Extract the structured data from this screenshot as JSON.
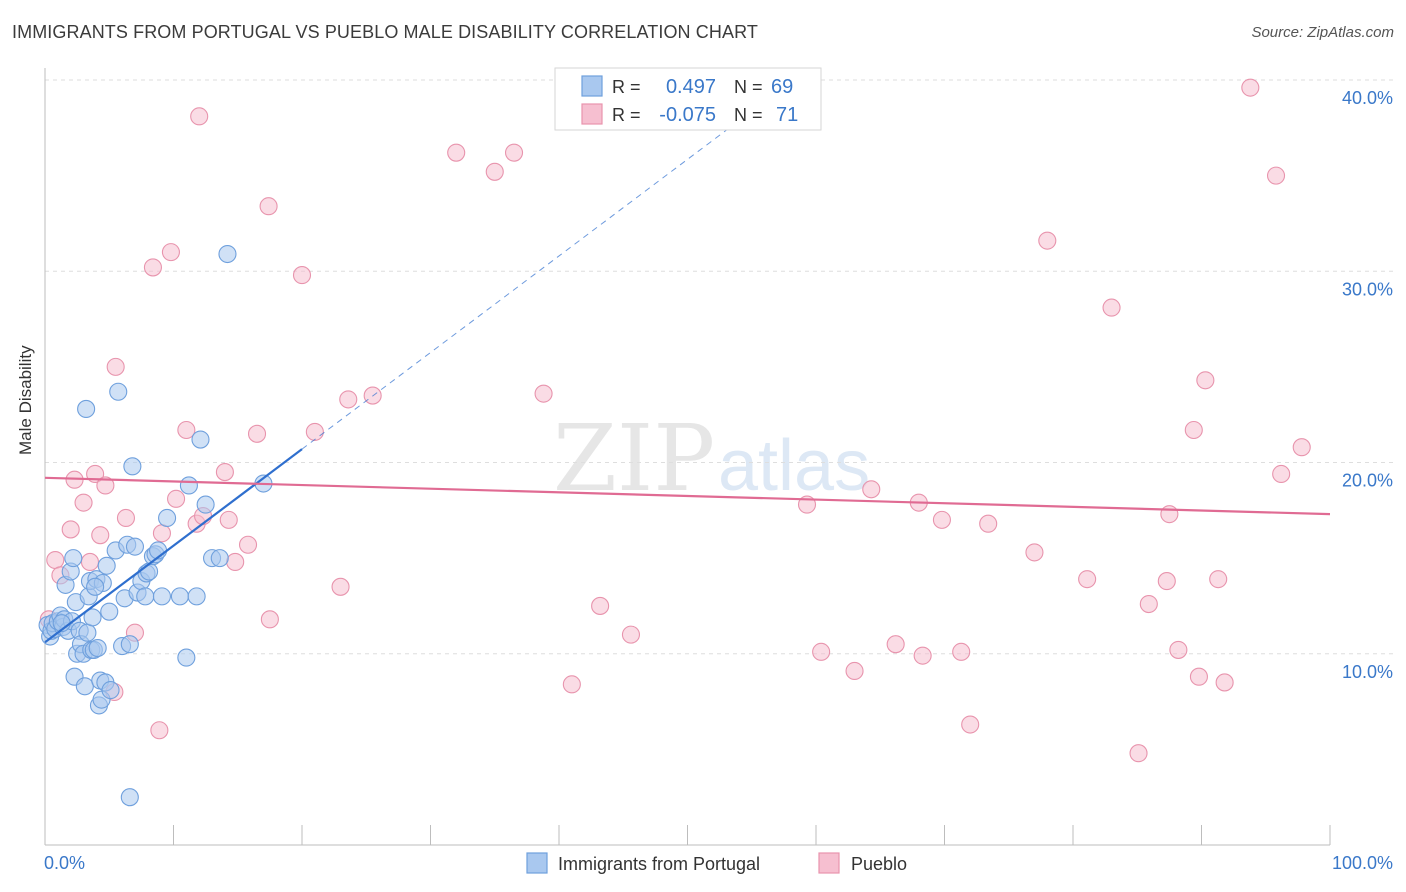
{
  "title": "IMMIGRANTS FROM PORTUGAL VS PUEBLO MALE DISABILITY CORRELATION CHART",
  "source": "Source: ZipAtlas.com",
  "watermark": {
    "zip": "ZIP",
    "atlas": "atlas"
  },
  "colors": {
    "blue_fill": "#a9c8ef",
    "blue_stroke": "#6fa0dd",
    "blue_line": "#2f6fce",
    "pink_fill": "#f6bfd0",
    "pink_stroke": "#e894ad",
    "pink_line": "#e06b93",
    "axis_text": "#3a78c9",
    "grid": "#dedede"
  },
  "legend": {
    "rows": [
      {
        "r_label": "R =",
        "r_value": "0.497",
        "n_label": "N =",
        "n_value": "69"
      },
      {
        "r_label": "R =",
        "r_value": "-0.075",
        "n_label": "N =",
        "n_value": "71"
      }
    ]
  },
  "chart_data": {
    "type": "scatter",
    "xlabel": "",
    "ylabel": "Male Disability",
    "xlim": [
      0,
      100
    ],
    "ylim": [
      0,
      40
    ],
    "x_tick_labels": [
      "0.0%",
      "100.0%"
    ],
    "y_ticks": [
      10,
      20,
      30,
      40
    ],
    "y_tick_labels": [
      "10.0%",
      "20.0%",
      "30.0%",
      "40.0%"
    ],
    "series": [
      {
        "name": "Immigrants from Portugal",
        "color": "blue",
        "trend": {
          "x0": 0,
          "y0": 10.6,
          "x1": 20,
          "y1": 20.7,
          "dashed_to_x": 55
        },
        "points": [
          [
            0.2,
            11.5
          ],
          [
            0.4,
            10.9
          ],
          [
            0.5,
            11.2
          ],
          [
            0.6,
            11.6
          ],
          [
            0.8,
            11.3
          ],
          [
            1.0,
            11.7
          ],
          [
            1.2,
            12.0
          ],
          [
            1.4,
            11.4
          ],
          [
            1.5,
            11.8
          ],
          [
            1.6,
            13.6
          ],
          [
            1.8,
            11.2
          ],
          [
            2.0,
            14.3
          ],
          [
            2.1,
            11.7
          ],
          [
            2.2,
            15.0
          ],
          [
            2.3,
            8.8
          ],
          [
            2.4,
            12.7
          ],
          [
            2.5,
            10.0
          ],
          [
            2.7,
            11.2
          ],
          [
            2.8,
            10.5
          ],
          [
            3.0,
            10.0
          ],
          [
            3.1,
            8.3
          ],
          [
            3.2,
            22.8
          ],
          [
            3.3,
            11.1
          ],
          [
            3.4,
            13.0
          ],
          [
            3.5,
            13.8
          ],
          [
            3.6,
            10.2
          ],
          [
            3.7,
            11.9
          ],
          [
            3.8,
            10.2
          ],
          [
            4.0,
            13.9
          ],
          [
            4.1,
            10.3
          ],
          [
            4.2,
            7.3
          ],
          [
            4.3,
            8.6
          ],
          [
            4.4,
            7.6
          ],
          [
            4.5,
            13.7
          ],
          [
            4.7,
            8.5
          ],
          [
            4.8,
            14.6
          ],
          [
            5.1,
            8.1
          ],
          [
            5.5,
            15.4
          ],
          [
            5.7,
            23.7
          ],
          [
            6.0,
            10.4
          ],
          [
            6.2,
            12.9
          ],
          [
            6.4,
            15.7
          ],
          [
            6.6,
            10.5
          ],
          [
            6.8,
            19.8
          ],
          [
            7.0,
            15.6
          ],
          [
            7.2,
            13.2
          ],
          [
            7.5,
            13.8
          ],
          [
            7.8,
            13.0
          ],
          [
            7.9,
            14.2
          ],
          [
            8.1,
            14.3
          ],
          [
            8.4,
            15.1
          ],
          [
            8.6,
            15.2
          ],
          [
            8.8,
            15.4
          ],
          [
            9.1,
            13.0
          ],
          [
            9.5,
            17.1
          ],
          [
            10.5,
            13.0
          ],
          [
            11.0,
            9.8
          ],
          [
            11.2,
            18.8
          ],
          [
            11.8,
            13.0
          ],
          [
            12.1,
            21.2
          ],
          [
            12.5,
            17.8
          ],
          [
            13.0,
            15.0
          ],
          [
            13.6,
            15.0
          ],
          [
            14.2,
            30.9
          ],
          [
            17.0,
            18.9
          ],
          [
            6.6,
            2.5
          ],
          [
            5.0,
            12.2
          ],
          [
            3.9,
            13.5
          ],
          [
            1.3,
            11.6
          ]
        ]
      },
      {
        "name": "Pueblo",
        "color": "pink",
        "trend": {
          "x0": 0,
          "y0": 19.2,
          "x1": 100,
          "y1": 17.3
        },
        "points": [
          [
            0.3,
            11.8
          ],
          [
            0.8,
            14.9
          ],
          [
            1.2,
            14.1
          ],
          [
            2.0,
            16.5
          ],
          [
            2.3,
            19.1
          ],
          [
            3.0,
            17.9
          ],
          [
            3.5,
            14.8
          ],
          [
            3.9,
            19.4
          ],
          [
            4.3,
            16.2
          ],
          [
            4.7,
            18.8
          ],
          [
            5.4,
            8.0
          ],
          [
            5.5,
            25.0
          ],
          [
            6.3,
            17.1
          ],
          [
            7.0,
            11.1
          ],
          [
            8.4,
            30.2
          ],
          [
            8.9,
            6.0
          ],
          [
            9.1,
            16.3
          ],
          [
            9.8,
            31.0
          ],
          [
            10.2,
            18.1
          ],
          [
            11.0,
            21.7
          ],
          [
            11.8,
            16.8
          ],
          [
            12.0,
            38.1
          ],
          [
            12.3,
            17.2
          ],
          [
            14.0,
            19.5
          ],
          [
            14.3,
            17.0
          ],
          [
            14.8,
            14.8
          ],
          [
            15.8,
            15.7
          ],
          [
            16.5,
            21.5
          ],
          [
            17.4,
            33.4
          ],
          [
            17.5,
            11.8
          ],
          [
            20.0,
            29.8
          ],
          [
            21.0,
            21.6
          ],
          [
            23.0,
            13.5
          ],
          [
            23.6,
            23.3
          ],
          [
            25.5,
            23.5
          ],
          [
            32.0,
            36.2
          ],
          [
            35.0,
            35.2
          ],
          [
            36.5,
            36.2
          ],
          [
            38.8,
            23.6
          ],
          [
            41.0,
            8.4
          ],
          [
            43.2,
            12.5
          ],
          [
            45.6,
            11.0
          ],
          [
            59.3,
            17.8
          ],
          [
            60.4,
            10.1
          ],
          [
            63.0,
            9.1
          ],
          [
            64.3,
            18.6
          ],
          [
            66.2,
            10.5
          ],
          [
            68.0,
            17.9
          ],
          [
            68.3,
            9.9
          ],
          [
            69.8,
            17.0
          ],
          [
            71.3,
            10.1
          ],
          [
            72.0,
            6.3
          ],
          [
            73.4,
            16.8
          ],
          [
            77.0,
            15.3
          ],
          [
            78.0,
            31.6
          ],
          [
            81.1,
            13.9
          ],
          [
            83.0,
            28.1
          ],
          [
            85.1,
            4.8
          ],
          [
            85.9,
            12.6
          ],
          [
            87.3,
            13.8
          ],
          [
            87.5,
            17.3
          ],
          [
            88.2,
            10.2
          ],
          [
            89.4,
            21.7
          ],
          [
            89.8,
            8.8
          ],
          [
            90.3,
            24.3
          ],
          [
            91.3,
            13.9
          ],
          [
            91.8,
            8.5
          ],
          [
            93.8,
            39.6
          ],
          [
            95.8,
            35.0
          ],
          [
            96.2,
            19.4
          ],
          [
            97.8,
            20.8
          ]
        ]
      }
    ]
  }
}
